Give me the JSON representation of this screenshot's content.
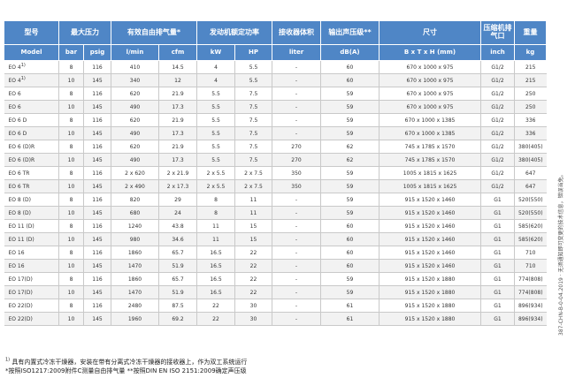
{
  "headers": {
    "top": {
      "model": "型号",
      "pressure": "最大压力",
      "air": "有效自由排气量*",
      "power": "发动机额定功率",
      "tank": "接收器体积",
      "noise": "输出声压级**",
      "size": "尺寸",
      "outlet": "压缩机排气口",
      "weight": "重量"
    },
    "units": {
      "model": "Model",
      "bar": "bar",
      "psig": "psig",
      "lmin": "l/min",
      "cfm": "cfm",
      "kw": "kW",
      "hp": "HP",
      "liter": "liter",
      "dba": "dB(A)",
      "size": "B x T x H (mm)",
      "inch": "inch",
      "kg": "kg"
    }
  },
  "rows": [
    {
      "model": "EO 4",
      "sup": "1)",
      "bar": "8",
      "psig": "116",
      "lmin": "410",
      "cfm": "14.5",
      "kw": "4",
      "hp": "5.5",
      "liter": "-",
      "dba": "60",
      "size": "670 x 1000 x 975",
      "inch": "G1/2",
      "kg": "215"
    },
    {
      "model": "EO 4",
      "sup": "1)",
      "bar": "10",
      "psig": "145",
      "lmin": "340",
      "cfm": "12",
      "kw": "4",
      "hp": "5.5",
      "liter": "-",
      "dba": "60",
      "size": "670 x 1000 x 975",
      "inch": "G1/2",
      "kg": "215"
    },
    {
      "model": "EO 6",
      "sup": "",
      "bar": "8",
      "psig": "116",
      "lmin": "620",
      "cfm": "21.9",
      "kw": "5.5",
      "hp": "7.5",
      "liter": "-",
      "dba": "59",
      "size": "670 x 1000 x 975",
      "inch": "G1/2",
      "kg": "250"
    },
    {
      "model": "EO 6",
      "sup": "",
      "bar": "10",
      "psig": "145",
      "lmin": "490",
      "cfm": "17.3",
      "kw": "5.5",
      "hp": "7.5",
      "liter": "-",
      "dba": "59",
      "size": "670 x 1000 x 975",
      "inch": "G1/2",
      "kg": "250"
    },
    {
      "model": "EO 6 D",
      "sup": "",
      "bar": "8",
      "psig": "116",
      "lmin": "620",
      "cfm": "21.9",
      "kw": "5.5",
      "hp": "7.5",
      "liter": "-",
      "dba": "59",
      "size": "670 x 1000 x 1385",
      "inch": "G1/2",
      "kg": "336"
    },
    {
      "model": "EO 6 D",
      "sup": "",
      "bar": "10",
      "psig": "145",
      "lmin": "490",
      "cfm": "17.3",
      "kw": "5.5",
      "hp": "7.5",
      "liter": "-",
      "dba": "59",
      "size": "670 x 1000 x 1385",
      "inch": "G1/2",
      "kg": "336"
    },
    {
      "model": "EO 6 (D)R",
      "sup": "",
      "bar": "8",
      "psig": "116",
      "lmin": "620",
      "cfm": "21.9",
      "kw": "5.5",
      "hp": "7.5",
      "liter": "270",
      "dba": "62",
      "size": "745 x 1785 x 1570",
      "inch": "G1/2",
      "kg": "380(405)"
    },
    {
      "model": "EO 6 (D)R",
      "sup": "",
      "bar": "10",
      "psig": "145",
      "lmin": "490",
      "cfm": "17.3",
      "kw": "5.5",
      "hp": "7.5",
      "liter": "270",
      "dba": "62",
      "size": "745 x 1785 x 1570",
      "inch": "G1/2",
      "kg": "380(405)"
    },
    {
      "model": "EO 6 TR",
      "sup": "",
      "bar": "8",
      "psig": "116",
      "lmin": "2 x 620",
      "cfm": "2 x 21.9",
      "kw": "2 x 5.5",
      "hp": "2 x 7.5",
      "liter": "350",
      "dba": "59",
      "size": "1005 x 1815 x 1625",
      "inch": "G1/2",
      "kg": "647"
    },
    {
      "model": "EO 6 TR",
      "sup": "",
      "bar": "10",
      "psig": "145",
      "lmin": "2 x 490",
      "cfm": "2 x 17.3",
      "kw": "2 x 5.5",
      "hp": "2 x 7.5",
      "liter": "350",
      "dba": "59",
      "size": "1005 x 1815 x 1625",
      "inch": "G1/2",
      "kg": "647"
    },
    {
      "model": "EO 8 (D)",
      "sup": "",
      "bar": "8",
      "psig": "116",
      "lmin": "820",
      "cfm": "29",
      "kw": "8",
      "hp": "11",
      "liter": "-",
      "dba": "59",
      "size": "915 x 1520 x 1460",
      "inch": "G1",
      "kg": "520(550)"
    },
    {
      "model": "EO 8 (D)",
      "sup": "",
      "bar": "10",
      "psig": "145",
      "lmin": "680",
      "cfm": "24",
      "kw": "8",
      "hp": "11",
      "liter": "-",
      "dba": "59",
      "size": "915 x 1520 x 1460",
      "inch": "G1",
      "kg": "520(550)"
    },
    {
      "model": "EO 11 (D)",
      "sup": "",
      "bar": "8",
      "psig": "116",
      "lmin": "1240",
      "cfm": "43.8",
      "kw": "11",
      "hp": "15",
      "liter": "-",
      "dba": "60",
      "size": "915 x 1520 x 1460",
      "inch": "G1",
      "kg": "585(620)"
    },
    {
      "model": "EO 11 (D)",
      "sup": "",
      "bar": "10",
      "psig": "145",
      "lmin": "980",
      "cfm": "34.6",
      "kw": "11",
      "hp": "15",
      "liter": "-",
      "dba": "60",
      "size": "915 x 1520 x 1460",
      "inch": "G1",
      "kg": "585(620)"
    },
    {
      "model": "EO 16",
      "sup": "",
      "bar": "8",
      "psig": "116",
      "lmin": "1860",
      "cfm": "65.7",
      "kw": "16.5",
      "hp": "22",
      "liter": "-",
      "dba": "60",
      "size": "915 x 1520 x 1460",
      "inch": "G1",
      "kg": "710"
    },
    {
      "model": "EO 16",
      "sup": "",
      "bar": "10",
      "psig": "145",
      "lmin": "1470",
      "cfm": "51.9",
      "kw": "16.5",
      "hp": "22",
      "liter": "-",
      "dba": "60",
      "size": "915 x 1520 x 1460",
      "inch": "G1",
      "kg": "710"
    },
    {
      "model": "EO 17(D)",
      "sup": "",
      "bar": "8",
      "psig": "116",
      "lmin": "1860",
      "cfm": "65.7",
      "kw": "16.5",
      "hp": "22",
      "liter": "-",
      "dba": "59",
      "size": "915 x 1520 x 1880",
      "inch": "G1",
      "kg": "774(808)"
    },
    {
      "model": "EO 17(D)",
      "sup": "",
      "bar": "10",
      "psig": "145",
      "lmin": "1470",
      "cfm": "51.9",
      "kw": "16.5",
      "hp": "22",
      "liter": "-",
      "dba": "59",
      "size": "915 x 1520 x 1880",
      "inch": "G1",
      "kg": "774(808)"
    },
    {
      "model": "EO 22(D)",
      "sup": "",
      "bar": "8",
      "psig": "116",
      "lmin": "2480",
      "cfm": "87.5",
      "kw": "22",
      "hp": "30",
      "liter": "-",
      "dba": "61",
      "size": "915 x 1520 x 1880",
      "inch": "G1",
      "kg": "896(934)"
    },
    {
      "model": "EO 22(D)",
      "sup": "",
      "bar": "10",
      "psig": "145",
      "lmin": "1960",
      "cfm": "69.2",
      "kw": "22",
      "hp": "30",
      "liter": "-",
      "dba": "61",
      "size": "915 x 1520 x 1880",
      "inch": "G1",
      "kg": "896(934)"
    }
  ],
  "notes": {
    "note1_mark": "1)",
    "note1": "具有内置式冷冻干燥器，安装在带有分离式冷冻干燥器的接收器上，作为双工系统运行",
    "note2": "*按照ISO1217:2009附件C测量自由排气量 **按照DIN EN ISO 2151:2009确定声压级"
  },
  "side_text": "387-CHN-B-0-04.2019 · 无须通知即可变更的技术信息，错误当免。",
  "colors": {
    "header_bg": "#4f86c6",
    "stripe": "#f2f2f2"
  }
}
